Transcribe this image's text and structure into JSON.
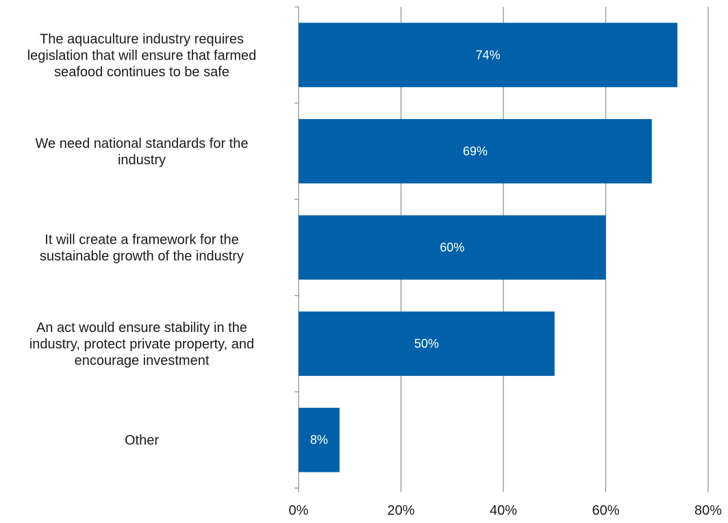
{
  "chart_data": {
    "type": "bar",
    "orientation": "horizontal",
    "title": "",
    "categories": [
      "The aquaculture industry requires legislation that will ensure that farmed seafood continues to be safe",
      "We need national standards for the industry",
      "It will create a framework for the sustainable growth of the industry",
      "An act would ensure stability in the industry, protect private property, and encourage investment",
      "Other"
    ],
    "category_lines": [
      [
        "The aquaculture industry requires",
        "legislation that will ensure that farmed",
        "seafood continues to be safe"
      ],
      [
        "We need national standards for the",
        "industry"
      ],
      [
        "It will create a framework for the",
        "sustainable growth of the industry"
      ],
      [
        "An act would ensure stability in the",
        "industry, protect private property, and",
        "encourage investment"
      ],
      [
        "Other"
      ]
    ],
    "values": [
      74,
      69,
      60,
      50,
      8
    ],
    "data_labels": [
      "74%",
      "69%",
      "60%",
      "50%",
      "8%"
    ],
    "xlim": [
      0,
      80
    ],
    "x_ticks": [
      0,
      20,
      40,
      60,
      80
    ],
    "x_tick_labels": [
      "0%",
      "20%",
      "40%",
      "60%",
      "80%"
    ],
    "grid": true,
    "bar_color": "#0060A8",
    "grid_color": "#8c8c8c",
    "xlabel": "",
    "ylabel": ""
  }
}
